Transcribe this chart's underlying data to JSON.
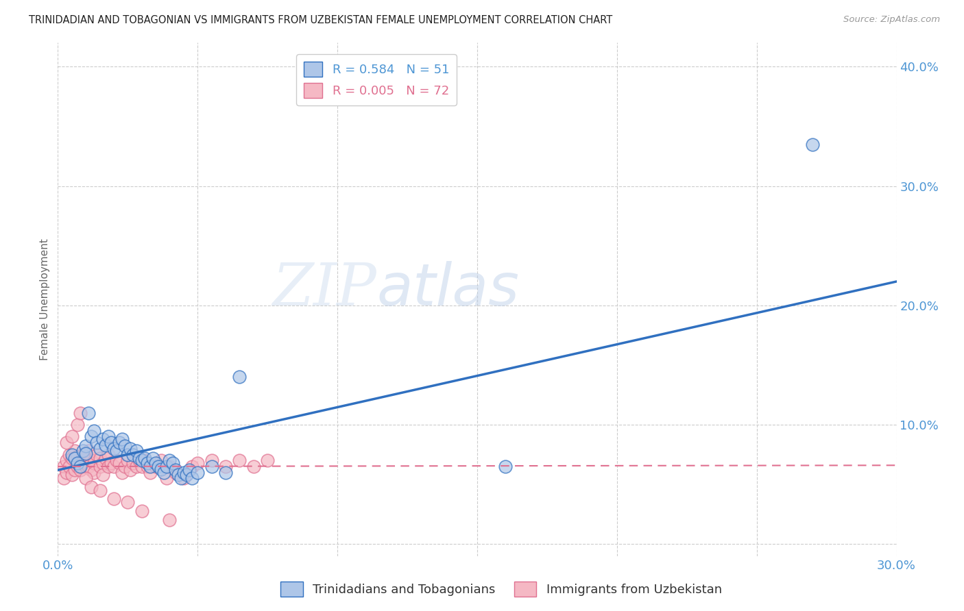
{
  "title": "TRINIDADIAN AND TOBAGONIAN VS IMMIGRANTS FROM UZBEKISTAN FEMALE UNEMPLOYMENT CORRELATION CHART",
  "source": "Source: ZipAtlas.com",
  "ylabel": "Female Unemployment",
  "xlim": [
    0.0,
    0.3
  ],
  "ylim": [
    -0.01,
    0.42
  ],
  "xticks": [
    0.0,
    0.05,
    0.1,
    0.15,
    0.2,
    0.25,
    0.3
  ],
  "yticks": [
    0.0,
    0.1,
    0.2,
    0.3,
    0.4
  ],
  "ytick_labels": [
    "",
    "10.0%",
    "20.0%",
    "30.0%",
    "40.0%"
  ],
  "xtick_labels": [
    "0.0%",
    "",
    "",
    "",
    "",
    "",
    "30.0%"
  ],
  "blue_R": 0.584,
  "blue_N": 51,
  "pink_R": 0.005,
  "pink_N": 72,
  "blue_color": "#aec6e8",
  "pink_color": "#f5b8c4",
  "blue_line_color": "#3070c0",
  "pink_line_color": "#e07090",
  "watermark_zip": "ZIP",
  "watermark_atlas": "atlas",
  "legend_label_blue": "Trinidadians and Tobagonians",
  "legend_label_pink": "Immigrants from Uzbekistan",
  "blue_scatter_x": [
    0.005,
    0.006,
    0.007,
    0.008,
    0.009,
    0.01,
    0.01,
    0.011,
    0.012,
    0.013,
    0.014,
    0.015,
    0.016,
    0.017,
    0.018,
    0.019,
    0.02,
    0.021,
    0.022,
    0.023,
    0.024,
    0.025,
    0.026,
    0.027,
    0.028,
    0.029,
    0.03,
    0.031,
    0.032,
    0.033,
    0.034,
    0.035,
    0.036,
    0.037,
    0.038,
    0.039,
    0.04,
    0.041,
    0.042,
    0.043,
    0.044,
    0.045,
    0.046,
    0.047,
    0.048,
    0.05,
    0.055,
    0.06,
    0.065,
    0.16,
    0.27
  ],
  "blue_scatter_y": [
    0.075,
    0.072,
    0.068,
    0.065,
    0.078,
    0.082,
    0.076,
    0.11,
    0.09,
    0.095,
    0.085,
    0.08,
    0.088,
    0.083,
    0.09,
    0.085,
    0.08,
    0.078,
    0.085,
    0.088,
    0.082,
    0.075,
    0.08,
    0.075,
    0.078,
    0.072,
    0.07,
    0.072,
    0.068,
    0.065,
    0.072,
    0.068,
    0.065,
    0.063,
    0.06,
    0.065,
    0.07,
    0.068,
    0.062,
    0.058,
    0.055,
    0.06,
    0.058,
    0.062,
    0.055,
    0.06,
    0.065,
    0.06,
    0.14,
    0.065,
    0.335
  ],
  "pink_scatter_x": [
    0.002,
    0.002,
    0.003,
    0.003,
    0.004,
    0.004,
    0.005,
    0.005,
    0.006,
    0.006,
    0.007,
    0.007,
    0.008,
    0.008,
    0.009,
    0.009,
    0.01,
    0.01,
    0.011,
    0.011,
    0.012,
    0.012,
    0.013,
    0.013,
    0.014,
    0.015,
    0.015,
    0.016,
    0.016,
    0.017,
    0.018,
    0.018,
    0.019,
    0.02,
    0.021,
    0.022,
    0.023,
    0.024,
    0.025,
    0.026,
    0.027,
    0.028,
    0.029,
    0.03,
    0.031,
    0.032,
    0.033,
    0.035,
    0.037,
    0.039,
    0.04,
    0.042,
    0.045,
    0.048,
    0.05,
    0.055,
    0.06,
    0.065,
    0.07,
    0.075,
    0.003,
    0.005,
    0.007,
    0.008,
    0.009,
    0.01,
    0.012,
    0.015,
    0.02,
    0.025,
    0.03,
    0.04
  ],
  "pink_scatter_y": [
    0.065,
    0.055,
    0.07,
    0.06,
    0.075,
    0.065,
    0.072,
    0.058,
    0.078,
    0.062,
    0.073,
    0.065,
    0.07,
    0.062,
    0.068,
    0.075,
    0.065,
    0.072,
    0.065,
    0.078,
    0.07,
    0.062,
    0.068,
    0.06,
    0.075,
    0.065,
    0.072,
    0.068,
    0.058,
    0.072,
    0.065,
    0.075,
    0.068,
    0.065,
    0.07,
    0.068,
    0.06,
    0.065,
    0.07,
    0.062,
    0.068,
    0.065,
    0.07,
    0.065,
    0.07,
    0.065,
    0.06,
    0.065,
    0.07,
    0.055,
    0.065,
    0.06,
    0.055,
    0.065,
    0.068,
    0.07,
    0.065,
    0.07,
    0.065,
    0.07,
    0.085,
    0.09,
    0.1,
    0.11,
    0.075,
    0.055,
    0.048,
    0.045,
    0.038,
    0.035,
    0.028,
    0.02
  ],
  "blue_line_x": [
    0.0,
    0.3
  ],
  "blue_line_y": [
    0.062,
    0.22
  ],
  "pink_line_x": [
    0.0,
    0.3
  ],
  "pink_line_y": [
    0.065,
    0.066
  ],
  "background_color": "#ffffff",
  "grid_color": "#cccccc",
  "tick_color": "#4e96d4",
  "ylabel_color": "#666666"
}
